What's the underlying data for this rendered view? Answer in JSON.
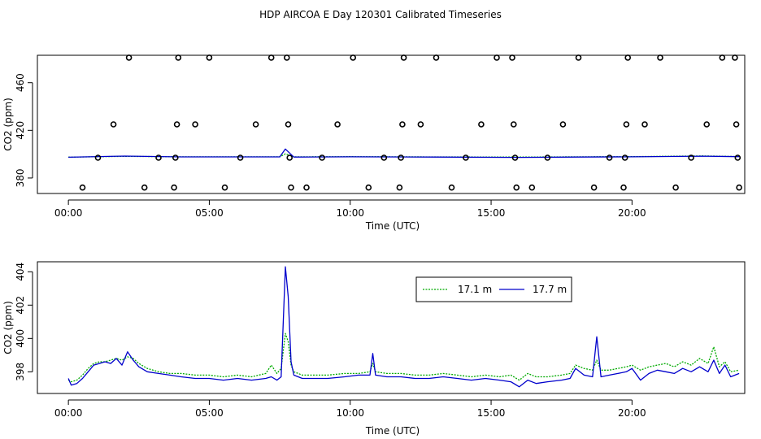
{
  "page_title": "HDP AIRCOA E  Day 120301  Calibrated Timeseries",
  "chart_data": [
    {
      "type": "scatter+line",
      "xlabel": "Time (UTC)",
      "ylabel": "CO2 (ppm)",
      "xlim": [
        -1.1,
        24.0
      ],
      "ylim": [
        367,
        483
      ],
      "x_ticks": [
        0,
        5,
        10,
        15,
        20
      ],
      "x_tick_labels": [
        "00:00",
        "05:00",
        "10:00",
        "15:00",
        "20:00"
      ],
      "y_ticks": [
        380,
        420,
        460
      ],
      "y_tick_labels": [
        "380",
        "420",
        "460"
      ],
      "calibration_points": [
        {
          "x": 0.5,
          "y": 372
        },
        {
          "x": 1.05,
          "y": 397
        },
        {
          "x": 1.6,
          "y": 425
        },
        {
          "x": 2.15,
          "y": 481
        },
        {
          "x": 2.7,
          "y": 372
        },
        {
          "x": 3.2,
          "y": 397
        },
        {
          "x": 3.75,
          "y": 372
        },
        {
          "x": 3.8,
          "y": 397
        },
        {
          "x": 3.85,
          "y": 425
        },
        {
          "x": 3.9,
          "y": 481
        },
        {
          "x": 4.5,
          "y": 425
        },
        {
          "x": 5.0,
          "y": 481
        },
        {
          "x": 5.55,
          "y": 372
        },
        {
          "x": 6.1,
          "y": 397
        },
        {
          "x": 6.65,
          "y": 425
        },
        {
          "x": 7.2,
          "y": 481
        },
        {
          "x": 7.75,
          "y": 481
        },
        {
          "x": 7.8,
          "y": 425
        },
        {
          "x": 7.85,
          "y": 397
        },
        {
          "x": 7.9,
          "y": 372
        },
        {
          "x": 8.45,
          "y": 372
        },
        {
          "x": 9.0,
          "y": 397
        },
        {
          "x": 9.55,
          "y": 425
        },
        {
          "x": 10.1,
          "y": 481
        },
        {
          "x": 10.65,
          "y": 372
        },
        {
          "x": 11.2,
          "y": 397
        },
        {
          "x": 11.75,
          "y": 372
        },
        {
          "x": 11.8,
          "y": 397
        },
        {
          "x": 11.85,
          "y": 425
        },
        {
          "x": 11.9,
          "y": 481
        },
        {
          "x": 12.5,
          "y": 425
        },
        {
          "x": 13.05,
          "y": 481
        },
        {
          "x": 13.6,
          "y": 372
        },
        {
          "x": 14.1,
          "y": 397
        },
        {
          "x": 14.65,
          "y": 425
        },
        {
          "x": 15.2,
          "y": 481
        },
        {
          "x": 15.75,
          "y": 481
        },
        {
          "x": 15.8,
          "y": 425
        },
        {
          "x": 15.85,
          "y": 397
        },
        {
          "x": 15.9,
          "y": 372
        },
        {
          "x": 16.45,
          "y": 372
        },
        {
          "x": 17.0,
          "y": 397
        },
        {
          "x": 17.55,
          "y": 425
        },
        {
          "x": 18.1,
          "y": 481
        },
        {
          "x": 18.65,
          "y": 372
        },
        {
          "x": 19.2,
          "y": 397
        },
        {
          "x": 19.7,
          "y": 372
        },
        {
          "x": 19.75,
          "y": 397
        },
        {
          "x": 19.8,
          "y": 425
        },
        {
          "x": 19.85,
          "y": 481
        },
        {
          "x": 20.45,
          "y": 425
        },
        {
          "x": 21.0,
          "y": 481
        },
        {
          "x": 21.55,
          "y": 372
        },
        {
          "x": 22.1,
          "y": 397
        },
        {
          "x": 22.65,
          "y": 425
        },
        {
          "x": 23.2,
          "y": 481
        },
        {
          "x": 23.65,
          "y": 481
        },
        {
          "x": 23.7,
          "y": 425
        },
        {
          "x": 23.75,
          "y": 397
        },
        {
          "x": 23.8,
          "y": 372
        }
      ],
      "line_series": [
        {
          "color": "#00aa00",
          "dash": true,
          "x": [
            0,
            2,
            4,
            7.5,
            7.7,
            8.0,
            10.0,
            13.0,
            16.0,
            18.0,
            20.0,
            22.5,
            23.8
          ],
          "y": [
            397.5,
            398.2,
            397.8,
            397.8,
            400.2,
            397.8,
            397.9,
            397.7,
            397.6,
            397.8,
            397.9,
            398.5,
            398.0
          ]
        },
        {
          "color": "#0000cc",
          "dash": false,
          "x": [
            0,
            2,
            4,
            7.5,
            7.7,
            8.0,
            10.0,
            13.0,
            16.0,
            18.0,
            20.0,
            22.5,
            23.8
          ],
          "y": [
            397.4,
            398.4,
            397.7,
            397.7,
            404.3,
            397.6,
            397.8,
            397.6,
            397.3,
            397.6,
            397.8,
            398.3,
            397.9
          ]
        }
      ]
    },
    {
      "type": "line",
      "xlabel": "Time (UTC)",
      "ylabel": "CO2 (ppm)",
      "xlim": [
        -1.1,
        24.0
      ],
      "ylim": [
        396.7,
        404.6
      ],
      "x_ticks": [
        0,
        5,
        10,
        15,
        20
      ],
      "x_tick_labels": [
        "00:00",
        "05:00",
        "10:00",
        "15:00",
        "20:00"
      ],
      "y_ticks": [
        398,
        400,
        402,
        404
      ],
      "y_tick_labels": [
        "398",
        "400",
        "402",
        "404"
      ],
      "legend": {
        "position": "top-center"
      },
      "series": [
        {
          "name": "17.1 m",
          "color": "#00aa00",
          "dash": true,
          "x": [
            0,
            0.1,
            0.3,
            0.5,
            0.7,
            0.9,
            1.1,
            1.3,
            1.5,
            1.7,
            1.9,
            2.1,
            2.3,
            2.5,
            2.8,
            3.2,
            3.6,
            4.0,
            4.5,
            5.0,
            5.5,
            6.0,
            6.5,
            7.0,
            7.2,
            7.4,
            7.55,
            7.7,
            7.8,
            7.9,
            8.0,
            8.3,
            8.7,
            9.2,
            9.8,
            10.3,
            10.7,
            10.8,
            10.9,
            11.3,
            11.8,
            12.3,
            12.8,
            13.3,
            13.8,
            14.3,
            14.8,
            15.3,
            15.7,
            16.0,
            16.3,
            16.6,
            17.0,
            17.5,
            17.8,
            18.0,
            18.3,
            18.6,
            18.75,
            18.9,
            19.2,
            19.5,
            19.8,
            20.0,
            20.3,
            20.6,
            20.9,
            21.2,
            21.5,
            21.8,
            22.1,
            22.4,
            22.7,
            22.9,
            23.1,
            23.3,
            23.5,
            23.8
          ],
          "y": [
            397.5,
            397.4,
            397.5,
            397.8,
            398.2,
            398.5,
            398.6,
            398.6,
            398.7,
            398.8,
            398.7,
            398.9,
            398.8,
            398.5,
            398.2,
            398.0,
            397.9,
            397.9,
            397.8,
            397.8,
            397.7,
            397.8,
            397.7,
            397.9,
            398.4,
            397.9,
            398.2,
            400.3,
            399.8,
            398.4,
            398.0,
            397.8,
            397.8,
            397.8,
            397.9,
            397.9,
            398.0,
            398.5,
            398.0,
            397.9,
            397.9,
            397.8,
            397.8,
            397.9,
            397.8,
            397.7,
            397.8,
            397.7,
            397.8,
            397.5,
            397.9,
            397.7,
            397.7,
            397.8,
            397.9,
            398.4,
            398.2,
            398.1,
            398.7,
            398.1,
            398.1,
            398.2,
            398.3,
            398.4,
            398.1,
            398.3,
            398.4,
            398.5,
            398.3,
            398.6,
            398.4,
            398.8,
            398.5,
            399.5,
            398.3,
            398.6,
            398.0,
            398.1
          ]
        },
        {
          "name": "17.7 m",
          "color": "#0000cc",
          "dash": false,
          "x": [
            0,
            0.1,
            0.3,
            0.5,
            0.7,
            0.9,
            1.1,
            1.3,
            1.5,
            1.7,
            1.9,
            2.1,
            2.3,
            2.5,
            2.8,
            3.2,
            3.6,
            4.0,
            4.5,
            5.0,
            5.5,
            6.0,
            6.5,
            7.0,
            7.2,
            7.4,
            7.55,
            7.7,
            7.8,
            7.9,
            8.0,
            8.3,
            8.7,
            9.2,
            9.8,
            10.3,
            10.7,
            10.8,
            10.9,
            11.3,
            11.8,
            12.3,
            12.8,
            13.3,
            13.8,
            14.3,
            14.8,
            15.3,
            15.7,
            16.0,
            16.3,
            16.6,
            17.0,
            17.5,
            17.8,
            18.0,
            18.3,
            18.6,
            18.75,
            18.9,
            19.2,
            19.5,
            19.8,
            20.0,
            20.3,
            20.6,
            20.9,
            21.2,
            21.5,
            21.8,
            22.1,
            22.4,
            22.7,
            22.9,
            23.1,
            23.3,
            23.5,
            23.8
          ],
          "y": [
            397.6,
            397.2,
            397.3,
            397.6,
            398.0,
            398.4,
            398.5,
            398.6,
            398.5,
            398.8,
            398.4,
            399.2,
            398.7,
            398.3,
            398.0,
            397.9,
            397.8,
            397.7,
            397.6,
            397.6,
            397.5,
            397.6,
            397.5,
            397.6,
            397.7,
            397.5,
            397.7,
            404.3,
            402.5,
            398.6,
            397.8,
            397.6,
            397.6,
            397.6,
            397.7,
            397.8,
            397.8,
            399.1,
            397.8,
            397.7,
            397.7,
            397.6,
            397.6,
            397.7,
            397.6,
            397.5,
            397.6,
            397.5,
            397.4,
            397.1,
            397.5,
            397.3,
            397.4,
            397.5,
            397.6,
            398.2,
            397.8,
            397.7,
            400.1,
            397.7,
            397.8,
            397.9,
            398.0,
            398.2,
            397.5,
            397.9,
            398.1,
            398.0,
            397.9,
            398.2,
            398.0,
            398.3,
            398.0,
            398.7,
            397.9,
            398.4,
            397.7,
            397.9
          ]
        }
      ]
    }
  ]
}
